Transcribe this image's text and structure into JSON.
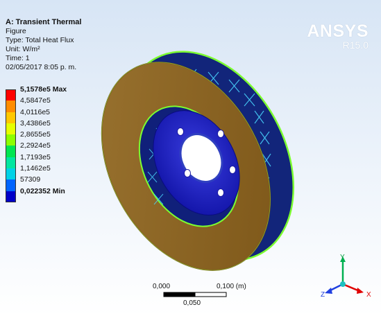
{
  "info": {
    "title": "A: Transient Thermal",
    "figure": "Figure",
    "type": "Type: Total Heat Flux",
    "unit": "Unit: W/m²",
    "time": "Time: 1",
    "date": "02/05/2017 8:05 p. m."
  },
  "brand": {
    "name": "ANSYS",
    "version": "R15.0"
  },
  "legend": {
    "entries": [
      {
        "label": "5,1578e5 Max",
        "color": "#ff0000",
        "bold": true
      },
      {
        "label": "4,5847e5",
        "color": "#ff8c00",
        "bold": false
      },
      {
        "label": "4,0116e5",
        "color": "#ffc800",
        "bold": false
      },
      {
        "label": "3,4386e5",
        "color": "#e6ff00",
        "bold": false
      },
      {
        "label": "2,8655e5",
        "color": "#8cff00",
        "bold": false
      },
      {
        "label": "2,2924e5",
        "color": "#00e650",
        "bold": false
      },
      {
        "label": "1,7193e5",
        "color": "#00e6a0",
        "bold": false
      },
      {
        "label": "1,1462e5",
        "color": "#00d2e6",
        "bold": false
      },
      {
        "label": "57309",
        "color": "#0064ff",
        "bold": false
      },
      {
        "label": "0,022352 Min",
        "color": "#0000c8",
        "bold": true
      }
    ]
  },
  "scale_bar": {
    "left": "0,000",
    "right": "0,100 (m)",
    "middle": "0,050"
  },
  "triad": {
    "x": "X",
    "y": "Y",
    "z": "Z"
  },
  "colors": {
    "disc_face": "#8a6422",
    "disc_edge": "#5a3f12",
    "vane_blue": "#1a2f8c",
    "hub_blue": "#1e22c8",
    "rim_green": "#7cff30"
  }
}
